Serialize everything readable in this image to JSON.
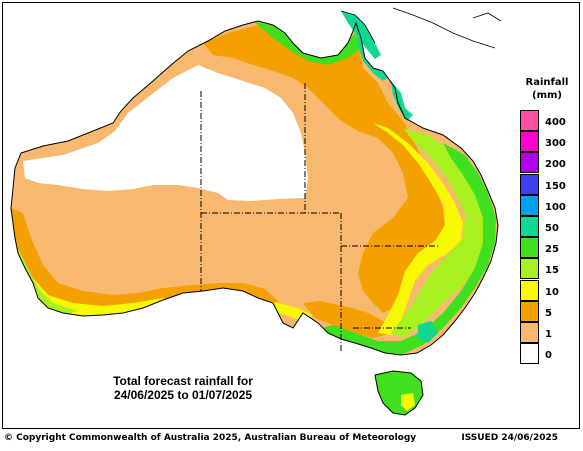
{
  "caption": {
    "line1": "Total forecast rainfall for",
    "line2": "24/06/2025 to 01/07/2025"
  },
  "legend": {
    "title": "Rainfall",
    "unit": "(mm)",
    "classes": [
      {
        "label": "400",
        "color": "#ff50a0"
      },
      {
        "label": "300",
        "color": "#ff00d0"
      },
      {
        "label": "200",
        "color": "#b000f0"
      },
      {
        "label": "150",
        "color": "#4040f0"
      },
      {
        "label": "100",
        "color": "#00a0f0"
      },
      {
        "label": "50",
        "color": "#10d890"
      },
      {
        "label": "25",
        "color": "#40e020"
      },
      {
        "label": "15",
        "color": "#a8f020"
      },
      {
        "label": "10",
        "color": "#f8f800"
      },
      {
        "label": "5",
        "color": "#f4a000"
      },
      {
        "label": "1",
        "color": "#f8b870"
      },
      {
        "label": "0",
        "color": "#ffffff"
      }
    ]
  },
  "footer": {
    "copyright": "© Copyright Commonwealth of Australia 2025, Australian Bureau of Meteorology",
    "issued": "ISSUED 24/06/2025"
  }
}
